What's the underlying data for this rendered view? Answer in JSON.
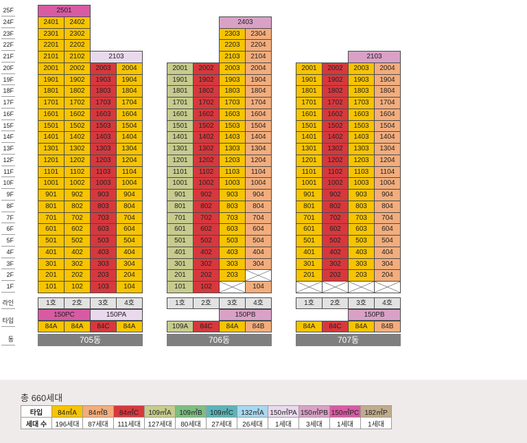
{
  "colors": {
    "84A": "#f7c400",
    "84B": "#f3ad7c",
    "84C": "#d7383d",
    "109A": "#c7cb8d",
    "109B": "#7ebd81",
    "109C": "#5bb4b7",
    "132A": "#a8d7ef",
    "150PA": "#ead9ed",
    "150PB": "#d9a1c6",
    "150PC": "#d85aa3",
    "182P": "#c0ab8c",
    "line": "#e2e2e2",
    "building": "#7f7f7f"
  },
  "floor_labels": [
    "25F",
    "24F",
    "23F",
    "22F",
    "21F",
    "20F",
    "19F",
    "18F",
    "17F",
    "16F",
    "15F",
    "14F",
    "13F",
    "12F",
    "11F",
    "10F",
    "9F",
    "8F",
    "7F",
    "6F",
    "5F",
    "4F",
    "3F",
    "2F",
    "1F"
  ],
  "row_labels": {
    "line": "라인",
    "type": "타입",
    "building": "동"
  },
  "buildings": [
    {
      "name": "705동",
      "lines": [
        "1호",
        "2호",
        "3호",
        "4호"
      ],
      "col_types": [
        "84A",
        "84A",
        "84C",
        "84A"
      ],
      "col_type_labels": [
        "84A",
        "84A",
        "84C",
        "84A"
      ],
      "col_top": [
        24,
        24,
        20,
        20
      ],
      "col_bottom": [
        1,
        1,
        1,
        1
      ],
      "blank": [],
      "special": [
        {
          "label": "2501",
          "floor": 25,
          "col_start": 0,
          "span": 2,
          "type": "150PC"
        },
        {
          "label": "2103",
          "floor": 21,
          "col_start": 2,
          "span": 2,
          "type": "150PA"
        }
      ],
      "penthouse_types": [
        {
          "label": "150PC",
          "col_start": 0,
          "span": 2,
          "type": "150PC"
        },
        {
          "label": "150PA",
          "col_start": 2,
          "span": 2,
          "type": "150PA"
        }
      ]
    },
    {
      "name": "706동",
      "lines": [
        "1호",
        "2호",
        "3호",
        "4호"
      ],
      "col_types": [
        "109A",
        "84C",
        "84A",
        "84B"
      ],
      "col_type_labels": [
        "109A",
        "84C",
        "84A",
        "84B"
      ],
      "col_top": [
        20,
        20,
        23,
        23
      ],
      "col_bottom": [
        1,
        1,
        1,
        1
      ],
      "blank": [
        [
          1,
          2
        ],
        [
          2,
          3
        ]
      ],
      "special": [
        {
          "label": "2403",
          "floor": 24,
          "col_start": 2,
          "span": 2,
          "type": "150PB"
        }
      ],
      "penthouse_types": [
        {
          "label": "150PB",
          "col_start": 2,
          "span": 2,
          "type": "150PB"
        }
      ]
    },
    {
      "name": "707동",
      "lines": [
        "1호",
        "2호",
        "3호",
        "4호"
      ],
      "col_types": [
        "84A",
        "84C",
        "84A",
        "84B"
      ],
      "col_type_labels": [
        "84A",
        "84C",
        "84A",
        "84B"
      ],
      "col_top": [
        20,
        20,
        20,
        20
      ],
      "col_bottom": [
        2,
        2,
        2,
        2
      ],
      "blank": [
        [
          1,
          0
        ],
        [
          1,
          1
        ],
        [
          1,
          2
        ],
        [
          1,
          3
        ]
      ],
      "special": [
        {
          "label": "2103",
          "floor": 21,
          "col_start": 2,
          "span": 2,
          "type": "150PB"
        }
      ],
      "penthouse_types": [
        {
          "label": "150PB",
          "col_start": 2,
          "span": 2,
          "type": "150PB"
        }
      ]
    }
  ],
  "summary": {
    "total": "총 660세대",
    "header_type": "타입",
    "header_count": "세대 수",
    "types": [
      {
        "label": "84㎡A",
        "count": "196세대",
        "key": "84A"
      },
      {
        "label": "84㎡B",
        "count": "87세대",
        "key": "84B"
      },
      {
        "label": "84㎡C",
        "count": "111세대",
        "key": "84C"
      },
      {
        "label": "109㎡A",
        "count": "127세대",
        "key": "109A"
      },
      {
        "label": "109㎡B",
        "count": "80세대",
        "key": "109B"
      },
      {
        "label": "109㎡C",
        "count": "27세대",
        "key": "109C"
      },
      {
        "label": "132㎡A",
        "count": "26세대",
        "key": "132A"
      },
      {
        "label": "150㎡PA",
        "count": "1세대",
        "key": "150PA"
      },
      {
        "label": "150㎡PB",
        "count": "3세대",
        "key": "150PB"
      },
      {
        "label": "150㎡PC",
        "count": "1세대",
        "key": "150PC"
      },
      {
        "label": "182㎡P",
        "count": "1세대",
        "key": "182P"
      }
    ]
  }
}
